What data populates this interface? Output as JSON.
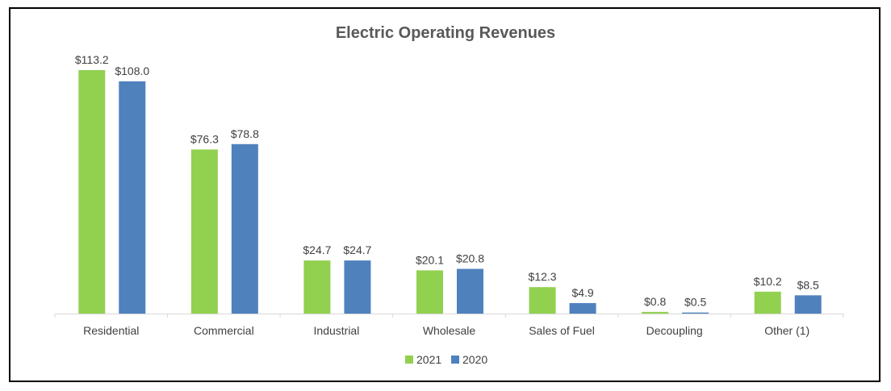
{
  "chart_data": {
    "type": "bar",
    "title": "Electric Operating Revenues",
    "categories": [
      "Residential",
      "Commercial",
      "Industrial",
      "Wholesale",
      "Sales of Fuel",
      "Decoupling",
      "Other (1)"
    ],
    "series": [
      {
        "name": "2021",
        "color": "#92D050",
        "values": [
          113.2,
          76.3,
          24.7,
          20.1,
          12.3,
          0.8,
          10.2
        ],
        "labels": [
          "$113.2",
          "$76.3",
          "$24.7",
          "$20.1",
          "$12.3",
          "$0.8",
          "$10.2"
        ]
      },
      {
        "name": "2020",
        "color": "#4F81BD",
        "values": [
          108.0,
          78.8,
          24.7,
          20.8,
          4.9,
          0.5,
          8.5
        ],
        "labels": [
          "$108.0",
          "$78.8",
          "$24.7",
          "$20.8",
          "$4.9",
          "$0.5",
          "$8.5"
        ]
      }
    ],
    "xlabel": "",
    "ylabel": "",
    "grid": false,
    "legend": "bottom"
  }
}
